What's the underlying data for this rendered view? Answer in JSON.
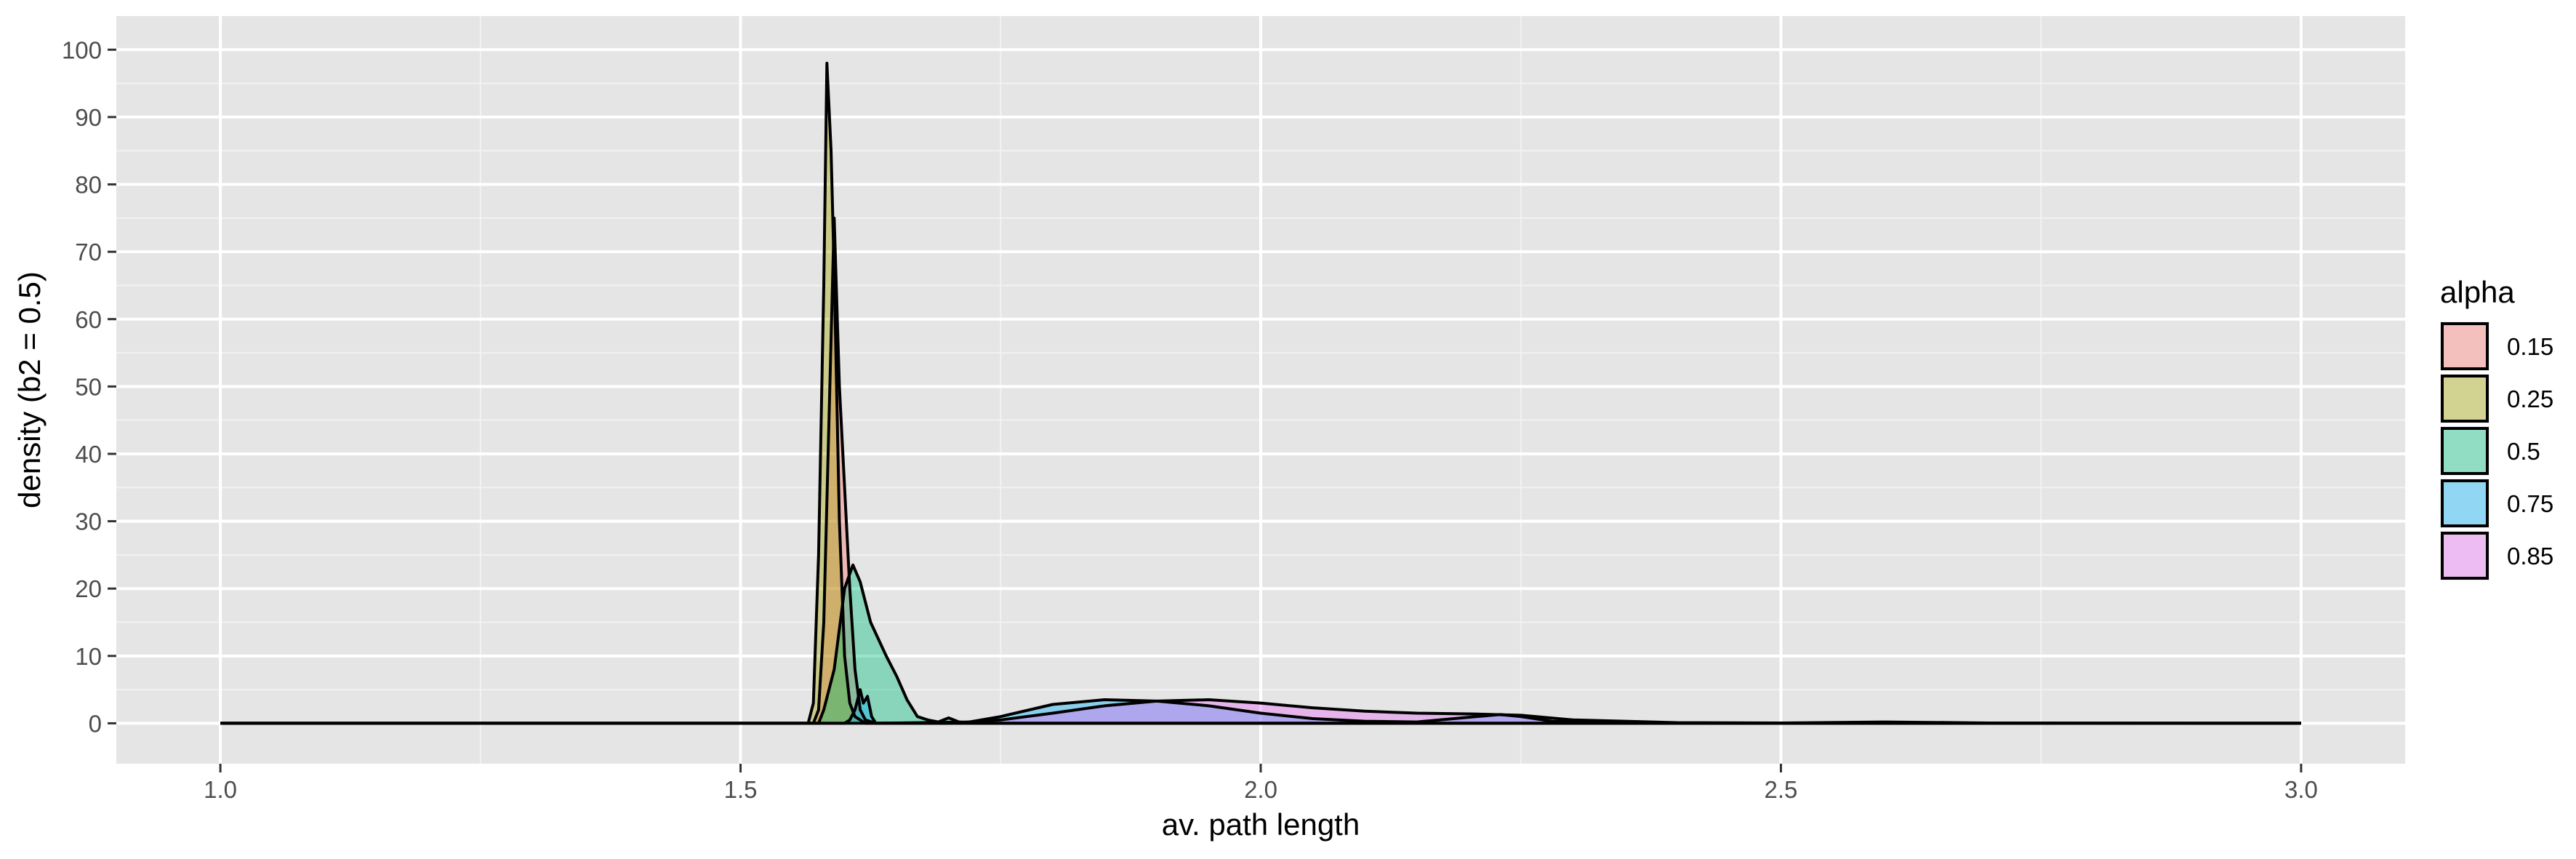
{
  "chart_data": {
    "type": "area",
    "subtype": "density",
    "title": "",
    "xlabel": "av. path length",
    "ylabel": "density (b2 = 0.5)",
    "xlim": [
      0.9,
      3.1
    ],
    "ylim": [
      -6,
      105
    ],
    "x_ticks": [
      1.0,
      1.5,
      2.0,
      2.5,
      3.0
    ],
    "x_tick_labels": [
      "1.0",
      "1.5",
      "2.0",
      "2.5",
      "3.0"
    ],
    "y_ticks": [
      0,
      10,
      20,
      30,
      40,
      50,
      60,
      70,
      80,
      90,
      100
    ],
    "y_tick_labels": [
      "0",
      "10",
      "20",
      "30",
      "40",
      "50",
      "60",
      "70",
      "80",
      "90",
      "100"
    ],
    "grid": true,
    "legend": {
      "title": "alpha",
      "position": "right"
    },
    "series": [
      {
        "name": "0.15",
        "color": "#F8766D",
        "points": [
          [
            1.0,
            0
          ],
          [
            1.57,
            0
          ],
          [
            1.575,
            2
          ],
          [
            1.58,
            15
          ],
          [
            1.585,
            45
          ],
          [
            1.59,
            75
          ],
          [
            1.595,
            50
          ],
          [
            1.6,
            35
          ],
          [
            1.605,
            20
          ],
          [
            1.61,
            8
          ],
          [
            1.615,
            2
          ],
          [
            1.62,
            0.5
          ],
          [
            1.63,
            0
          ],
          [
            3.0,
            0
          ]
        ]
      },
      {
        "name": "0.25",
        "color": "#A3A500",
        "points": [
          [
            1.0,
            0
          ],
          [
            1.565,
            0
          ],
          [
            1.57,
            3
          ],
          [
            1.575,
            25
          ],
          [
            1.58,
            65
          ],
          [
            1.583,
            98
          ],
          [
            1.587,
            85
          ],
          [
            1.59,
            67
          ],
          [
            1.595,
            30
          ],
          [
            1.6,
            10
          ],
          [
            1.605,
            3
          ],
          [
            1.61,
            1
          ],
          [
            1.62,
            0
          ],
          [
            3.0,
            0
          ]
        ]
      },
      {
        "name": "0.5",
        "color": "#00BF7D",
        "points": [
          [
            1.0,
            0
          ],
          [
            1.575,
            0
          ],
          [
            1.58,
            2
          ],
          [
            1.59,
            8
          ],
          [
            1.6,
            20
          ],
          [
            1.608,
            23.5
          ],
          [
            1.615,
            21
          ],
          [
            1.625,
            15
          ],
          [
            1.64,
            10
          ],
          [
            1.65,
            7
          ],
          [
            1.66,
            3.5
          ],
          [
            1.67,
            1
          ],
          [
            1.68,
            0.5
          ],
          [
            1.69,
            0.2
          ],
          [
            1.7,
            0.8
          ],
          [
            1.71,
            0.2
          ],
          [
            1.73,
            0
          ],
          [
            3.0,
            0
          ]
        ]
      },
      {
        "name": "0.75",
        "color": "#00B0F6",
        "points": [
          [
            1.0,
            0
          ],
          [
            1.6,
            0
          ],
          [
            1.605,
            0.5
          ],
          [
            1.61,
            2
          ],
          [
            1.615,
            5
          ],
          [
            1.618,
            3
          ],
          [
            1.622,
            4
          ],
          [
            1.626,
            1
          ],
          [
            1.63,
            0
          ],
          [
            1.72,
            0.2
          ],
          [
            1.75,
            1
          ],
          [
            1.8,
            2.8
          ],
          [
            1.85,
            3.5
          ],
          [
            1.9,
            3.3
          ],
          [
            1.95,
            2.6
          ],
          [
            2.0,
            1.5
          ],
          [
            2.05,
            0.7
          ],
          [
            2.1,
            0.3
          ],
          [
            2.15,
            0.2
          ],
          [
            2.2,
            0.9
          ],
          [
            2.23,
            1.3
          ],
          [
            2.25,
            1
          ],
          [
            2.28,
            0.3
          ],
          [
            2.35,
            0
          ],
          [
            3.0,
            0
          ]
        ]
      },
      {
        "name": "0.85",
        "color": "#E76BF3",
        "points": [
          [
            1.0,
            0
          ],
          [
            1.7,
            0
          ],
          [
            1.75,
            0.5
          ],
          [
            1.8,
            1.5
          ],
          [
            1.85,
            2.6
          ],
          [
            1.9,
            3.3
          ],
          [
            1.95,
            3.5
          ],
          [
            2.0,
            3
          ],
          [
            2.05,
            2.3
          ],
          [
            2.1,
            1.8
          ],
          [
            2.15,
            1.5
          ],
          [
            2.2,
            1.4
          ],
          [
            2.25,
            1.2
          ],
          [
            2.3,
            0.5
          ],
          [
            2.4,
            0.1
          ],
          [
            2.5,
            0.05
          ],
          [
            2.6,
            0.2
          ],
          [
            2.7,
            0.05
          ],
          [
            2.9,
            0
          ],
          [
            3.0,
            0
          ]
        ]
      }
    ]
  }
}
